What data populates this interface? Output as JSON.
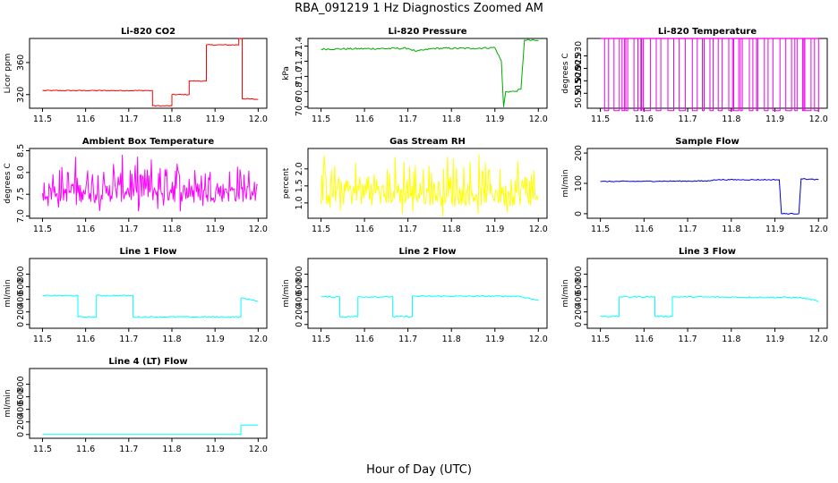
{
  "figure": {
    "title": "RBA_091219  1 Hz Diagnostics Zoomed AM",
    "xlabel": "Hour of Day (UTC)"
  },
  "chart_data": [
    {
      "type": "line",
      "title": "Li-820 CO2",
      "ylabel": "Licor ppm",
      "color": "#ff0000",
      "xlim": [
        11.47,
        12.02
      ],
      "ylim": [
        303,
        390
      ],
      "xticks": [
        "11.5",
        "11.6",
        "11.7",
        "11.8",
        "11.9",
        "12.0"
      ],
      "yticks": [
        "320",
        "360"
      ],
      "noise": 0.6,
      "points": [
        [
          11.5,
          325
        ],
        [
          11.755,
          325
        ],
        [
          11.755,
          306
        ],
        [
          11.8,
          306
        ],
        [
          11.8,
          320
        ],
        [
          11.84,
          320
        ],
        [
          11.84,
          337
        ],
        [
          11.88,
          337
        ],
        [
          11.88,
          382
        ],
        [
          11.955,
          382
        ],
        [
          11.955,
          390
        ],
        [
          11.963,
          390
        ],
        [
          11.963,
          315
        ],
        [
          12.0,
          314
        ]
      ]
    },
    {
      "type": "line",
      "title": "Li-820 Pressure",
      "ylabel": "kPa",
      "color": "#00aa00",
      "xlim": [
        11.47,
        12.02
      ],
      "ylim": [
        70.58,
        71.5
      ],
      "xticks": [
        "11.5",
        "11.6",
        "11.7",
        "11.8",
        "11.9",
        "12.0"
      ],
      "yticks": [
        "70.6",
        "70.8",
        "71.0",
        "71.2",
        "71.4"
      ],
      "noise": 0.012,
      "points": [
        [
          11.5,
          71.36
        ],
        [
          11.7,
          71.37
        ],
        [
          11.72,
          71.33
        ],
        [
          11.76,
          71.37
        ],
        [
          11.85,
          71.37
        ],
        [
          11.9,
          71.38
        ],
        [
          11.915,
          71.2
        ],
        [
          11.92,
          70.6
        ],
        [
          11.925,
          70.8
        ],
        [
          11.945,
          70.8
        ],
        [
          11.96,
          70.83
        ],
        [
          11.968,
          71.48
        ],
        [
          12.0,
          71.47
        ]
      ]
    },
    {
      "type": "line",
      "title": "Li-820 Temperature",
      "ylabel": "degrees C",
      "color": "#ee00ee",
      "xlim": [
        11.47,
        12.02
      ],
      "ylim": [
        50.909,
        50.937
      ],
      "xticks": [
        "11.5",
        "11.6",
        "11.7",
        "11.8",
        "11.9",
        "12.0"
      ],
      "yticks": [
        "50.915",
        "50.920",
        "50.925",
        "50.930"
      ],
      "spikes": true,
      "low": 50.908,
      "high": 50.937
    },
    {
      "type": "line",
      "title": "Ambient Box Temperature",
      "ylabel": "degrees C",
      "color": "#ff00ff",
      "xlim": [
        11.47,
        12.02
      ],
      "ylim": [
        6.95,
        8.55
      ],
      "xticks": [
        "11.5",
        "11.6",
        "11.7",
        "11.8",
        "11.9",
        "12.0"
      ],
      "yticks": [
        "7.0",
        "7.5",
        "8.0",
        "8.5"
      ],
      "noise_band": [
        7.1,
        8.4
      ],
      "center": 7.55
    },
    {
      "type": "line",
      "title": "Gas Stream RH",
      "ylabel": "percent",
      "color": "#ffff00",
      "xlim": [
        11.47,
        12.02
      ],
      "ylim": [
        0.55,
        2.6
      ],
      "xticks": [
        "11.5",
        "11.6",
        "11.7",
        "11.8",
        "11.9",
        "12.0"
      ],
      "yticks": [
        "1.0",
        "1.5",
        "2.0"
      ],
      "noise_band": [
        0.6,
        2.45
      ],
      "center": 1.25
    },
    {
      "type": "line",
      "title": "Sample Flow",
      "ylabel": "ml/min",
      "color": "#0000cc",
      "xlim": [
        11.47,
        12.02
      ],
      "ylim": [
        -15,
        215
      ],
      "xticks": [
        "11.5",
        "11.6",
        "11.7",
        "11.8",
        "11.9",
        "12.0"
      ],
      "yticks": [
        "0",
        "100",
        "200"
      ],
      "noise": 1.5,
      "points": [
        [
          11.5,
          106
        ],
        [
          11.75,
          108
        ],
        [
          11.76,
          112
        ],
        [
          11.91,
          112
        ],
        [
          11.915,
          0
        ],
        [
          11.955,
          0
        ],
        [
          11.96,
          115
        ],
        [
          12.0,
          112
        ]
      ]
    },
    {
      "type": "line",
      "title": "Line 1 Flow",
      "ylabel": "ml/min",
      "color": "#00ffff",
      "xlim": [
        11.47,
        12.02
      ],
      "ylim": [
        -60,
        1050
      ],
      "xticks": [
        "11.5",
        "11.6",
        "11.7",
        "11.8",
        "11.9",
        "12.0"
      ],
      "yticks": [
        "0",
        "200",
        "400",
        "600",
        "800"
      ],
      "noise": 10,
      "points": [
        [
          11.5,
          460
        ],
        [
          11.582,
          460
        ],
        [
          11.582,
          120
        ],
        [
          11.625,
          120
        ],
        [
          11.625,
          460
        ],
        [
          11.71,
          460
        ],
        [
          11.71,
          120
        ],
        [
          11.96,
          120
        ],
        [
          11.96,
          420
        ],
        [
          11.99,
          390
        ],
        [
          12.0,
          360
        ]
      ]
    },
    {
      "type": "line",
      "title": "Line 2 Flow",
      "ylabel": "ml/min",
      "color": "#00ffff",
      "xlim": [
        11.47,
        12.02
      ],
      "ylim": [
        -60,
        1050
      ],
      "xticks": [
        "11.5",
        "11.6",
        "11.7",
        "11.8",
        "11.9",
        "12.0"
      ],
      "yticks": [
        "0",
        "200",
        "400",
        "600",
        "800"
      ],
      "noise": 10,
      "points": [
        [
          11.5,
          440
        ],
        [
          11.543,
          440
        ],
        [
          11.543,
          125
        ],
        [
          11.585,
          125
        ],
        [
          11.585,
          440
        ],
        [
          11.665,
          440
        ],
        [
          11.665,
          125
        ],
        [
          11.71,
          125
        ],
        [
          11.71,
          450
        ],
        [
          11.955,
          450
        ],
        [
          11.99,
          400
        ],
        [
          12.0,
          380
        ]
      ]
    },
    {
      "type": "line",
      "title": "Line 3 Flow",
      "ylabel": "ml/min",
      "color": "#00ffff",
      "xlim": [
        11.47,
        12.02
      ],
      "ylim": [
        -60,
        1050
      ],
      "xticks": [
        "11.5",
        "11.6",
        "11.7",
        "11.8",
        "11.9",
        "12.0"
      ],
      "yticks": [
        "0",
        "200",
        "400",
        "600",
        "800"
      ],
      "noise": 10,
      "points": [
        [
          11.5,
          130
        ],
        [
          11.543,
          130
        ],
        [
          11.543,
          440
        ],
        [
          11.625,
          440
        ],
        [
          11.625,
          130
        ],
        [
          11.665,
          130
        ],
        [
          11.665,
          440
        ],
        [
          11.955,
          430
        ],
        [
          11.99,
          390
        ],
        [
          12.0,
          360
        ]
      ]
    },
    {
      "type": "line",
      "title": "Line 4 (LT) Flow",
      "ylabel": "ml/min",
      "color": "#00ffff",
      "xlim": [
        11.47,
        12.02
      ],
      "ylim": [
        -60,
        1050
      ],
      "xticks": [
        "11.5",
        "11.6",
        "11.7",
        "11.8",
        "11.9",
        "12.0"
      ],
      "yticks": [
        "0",
        "200",
        "400",
        "600",
        "800"
      ],
      "noise": 0,
      "points": [
        [
          11.5,
          0
        ],
        [
          11.96,
          0
        ],
        [
          11.96,
          150
        ],
        [
          12.0,
          150
        ]
      ]
    }
  ]
}
